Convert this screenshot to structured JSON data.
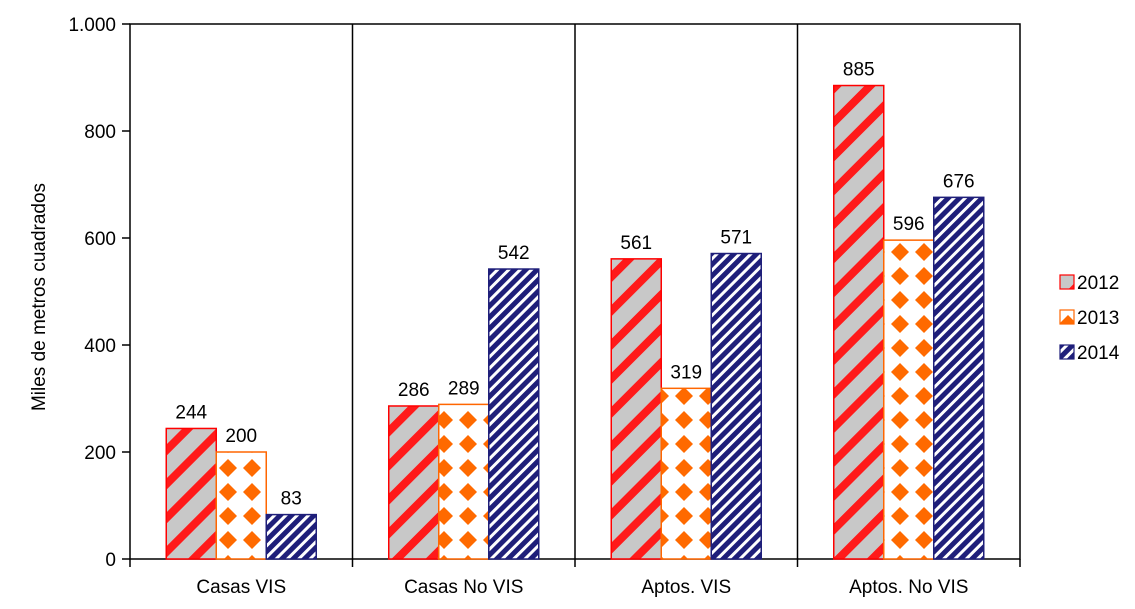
{
  "chart_data": {
    "type": "bar",
    "title": "",
    "xlabel": "",
    "ylabel": "Miles de metros cuadrados",
    "ylim": [
      0,
      1000
    ],
    "yticks": [
      0,
      200,
      400,
      600,
      800,
      1000
    ],
    "ytick_labels": [
      "0",
      "200",
      "400",
      "600",
      "800",
      "1.000"
    ],
    "categories": [
      "Casas VIS",
      "Casas No VIS",
      "Aptos. VIS",
      "Aptos. No VIS"
    ],
    "series": [
      {
        "name": "2012",
        "values": [
          244,
          286,
          561,
          885
        ],
        "color": "#ff0000",
        "pattern": "diagonal-stripes-red-gray"
      },
      {
        "name": "2013",
        "values": [
          200,
          289,
          319,
          596
        ],
        "color": "#ff6600",
        "pattern": "diamonds-orange-white"
      },
      {
        "name": "2014",
        "values": [
          83,
          542,
          571,
          676
        ],
        "color": "#1f1f7a",
        "pattern": "fine-diagonal-navy-white"
      }
    ],
    "legend_position": "right",
    "grid": false,
    "category_separators": true
  }
}
